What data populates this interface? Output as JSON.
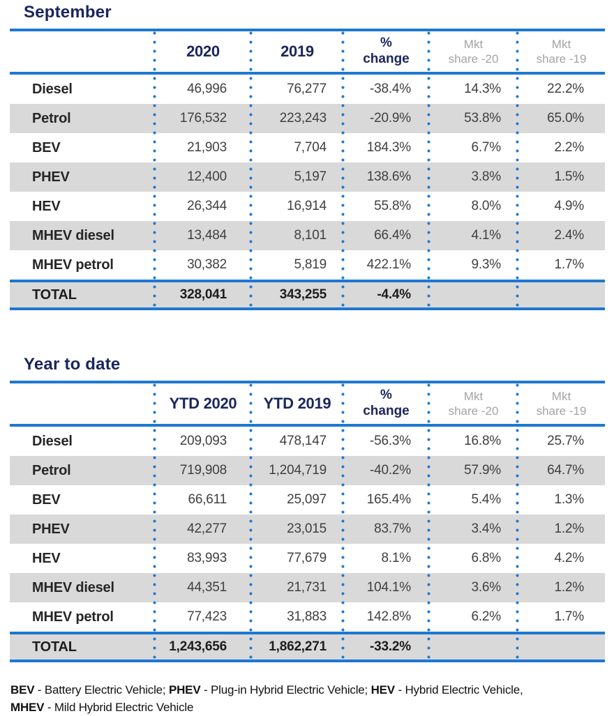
{
  "colors": {
    "title_navy": "#1a265c",
    "rule_blue": "#1e78d0",
    "band_gray": "#d9d9d9",
    "header_gray": "#a3a3a3",
    "value_text": "#404040"
  },
  "chart_data": [
    {
      "type": "table",
      "title": "September",
      "header": {
        "col_year_1": "2020",
        "col_year_2": "2019",
        "pct_line1": "%",
        "pct_line2": "change",
        "mkt20_line1": "Mkt",
        "mkt20_line2": "share -20",
        "mkt19_line1": "Mkt",
        "mkt19_line2": "share -19"
      },
      "rows": [
        {
          "label": "Diesel",
          "values": [
            "46,996",
            "76,277",
            "-38.4%",
            "14.3%",
            "22.2%"
          ]
        },
        {
          "label": "Petrol",
          "values": [
            "176,532",
            "223,243",
            "-20.9%",
            "53.8%",
            "65.0%"
          ]
        },
        {
          "label": "BEV",
          "values": [
            "21,903",
            "7,704",
            "184.3%",
            "6.7%",
            "2.2%"
          ]
        },
        {
          "label": "PHEV",
          "values": [
            "12,400",
            "5,197",
            "138.6%",
            "3.8%",
            "1.5%"
          ]
        },
        {
          "label": "HEV",
          "values": [
            "26,344",
            "16,914",
            "55.8%",
            "8.0%",
            "4.9%"
          ]
        },
        {
          "label": "MHEV diesel",
          "values": [
            "13,484",
            "8,101",
            "66.4%",
            "4.1%",
            "2.4%"
          ]
        },
        {
          "label": "MHEV petrol",
          "values": [
            "30,382",
            "5,819",
            "422.1%",
            "9.3%",
            "1.7%"
          ]
        }
      ],
      "total": {
        "label": "TOTAL",
        "values": [
          "328,041",
          "343,255",
          "-4.4%",
          "",
          ""
        ]
      }
    },
    {
      "type": "table",
      "title": "Year to date",
      "header": {
        "col_year_1": "YTD 2020",
        "col_year_2": "YTD 2019",
        "pct_line1": "%",
        "pct_line2": "change",
        "mkt20_line1": "Mkt",
        "mkt20_line2": "share -20",
        "mkt19_line1": "Mkt",
        "mkt19_line2": "share -19"
      },
      "rows": [
        {
          "label": "Diesel",
          "values": [
            "209,093",
            "478,147",
            "-56.3%",
            "16.8%",
            "25.7%"
          ]
        },
        {
          "label": "Petrol",
          "values": [
            "719,908",
            "1,204,719",
            "-40.2%",
            "57.9%",
            "64.7%"
          ]
        },
        {
          "label": "BEV",
          "values": [
            "66,611",
            "25,097",
            "165.4%",
            "5.4%",
            "1.3%"
          ]
        },
        {
          "label": "PHEV",
          "values": [
            "42,277",
            "23,015",
            "83.7%",
            "3.4%",
            "1.2%"
          ]
        },
        {
          "label": "HEV",
          "values": [
            "83,993",
            "77,679",
            "8.1%",
            "6.8%",
            "4.2%"
          ]
        },
        {
          "label": "MHEV diesel",
          "values": [
            "44,351",
            "21,731",
            "104.1%",
            "3.6%",
            "1.2%"
          ]
        },
        {
          "label": "MHEV petrol",
          "values": [
            "77,423",
            "31,883",
            "142.8%",
            "6.2%",
            "1.7%"
          ]
        }
      ],
      "total": {
        "label": "TOTAL",
        "values": [
          "1,243,656",
          "1,862,271",
          "-33.2%",
          "",
          ""
        ]
      }
    }
  ],
  "footer": {
    "lines": [
      [
        {
          "text": "BEV",
          "bold": true
        },
        {
          "text": " - Battery Electric Vehicle; ",
          "bold": false
        },
        {
          "text": "PHEV",
          "bold": true
        },
        {
          "text": " - Plug-in Hybrid Electric Vehicle; ",
          "bold": false
        },
        {
          "text": "HEV",
          "bold": true
        },
        {
          "text": " - Hybrid Electric Vehicle,",
          "bold": false
        }
      ],
      [
        {
          "text": "MHEV",
          "bold": true
        },
        {
          "text": " - Mild Hybrid Electric Vehicle",
          "bold": false
        }
      ]
    ]
  }
}
